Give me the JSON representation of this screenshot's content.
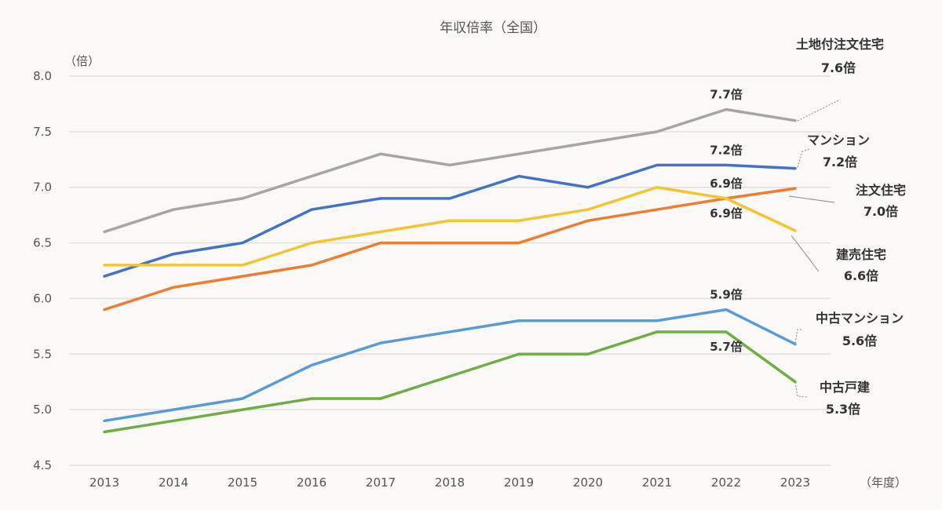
{
  "chart_data": {
    "type": "line",
    "title": "年収倍率（全国）",
    "ylabel": "（倍）",
    "xlabel": "（年度）",
    "ylim": [
      4.5,
      8.0
    ],
    "yticks": [
      "8.0",
      "7.5",
      "7.0",
      "6.5",
      "6.0",
      "5.5",
      "5.0",
      "4.5"
    ],
    "ytick_values": [
      8.0,
      7.5,
      7.0,
      6.5,
      6.0,
      5.5,
      5.0,
      4.5
    ],
    "categories": [
      "2013",
      "2014",
      "2015",
      "2016",
      "2017",
      "2018",
      "2019",
      "2020",
      "2021",
      "2022",
      "2023"
    ],
    "grid": true,
    "legend": "none (end-of-line labels on right)",
    "series": [
      {
        "name": "土地付注文住宅",
        "color": "#a5a5a5",
        "values": [
          6.6,
          6.8,
          6.9,
          7.1,
          7.3,
          7.2,
          7.3,
          7.4,
          7.5,
          7.7,
          7.6
        ],
        "end_label": "7.6倍",
        "annotations": [
          {
            "category": "2022",
            "text": "7.7倍",
            "position": "above"
          }
        ],
        "leader": "dotted"
      },
      {
        "name": "マンション",
        "color": "#4472c4",
        "values": [
          6.2,
          6.4,
          6.5,
          6.8,
          6.9,
          6.9,
          7.1,
          7.0,
          7.2,
          7.2,
          7.17
        ],
        "end_label": "7.2倍",
        "annotations": [
          {
            "category": "2022",
            "text": "7.2倍",
            "position": "above"
          }
        ],
        "leader": "dotted"
      },
      {
        "name": "注文住宅",
        "color": "#ed7d31",
        "values": [
          5.9,
          6.1,
          6.2,
          6.3,
          6.5,
          6.5,
          6.5,
          6.7,
          6.8,
          6.9,
          6.99
        ],
        "end_label": "7.0倍",
        "annotations": [
          {
            "category": "2022",
            "text": "6.9倍",
            "position": "above"
          }
        ],
        "leader": "solid"
      },
      {
        "name": "建売住宅",
        "color": "#f5c432",
        "values": [
          6.3,
          6.3,
          6.3,
          6.5,
          6.6,
          6.7,
          6.7,
          6.8,
          7.0,
          6.9,
          6.61
        ],
        "end_label": "6.6倍",
        "annotations": [
          {
            "category": "2022",
            "text": "6.9倍",
            "position": "below"
          }
        ],
        "leader": "solid"
      },
      {
        "name": "中古マンション",
        "color": "#5b9bd5",
        "values": [
          4.9,
          5.0,
          5.1,
          5.4,
          5.6,
          5.7,
          5.8,
          5.8,
          5.8,
          5.9,
          5.59
        ],
        "end_label": "5.6倍",
        "annotations": [
          {
            "category": "2022",
            "text": "5.9倍",
            "position": "above"
          }
        ],
        "leader": "dotted"
      },
      {
        "name": "中古戸建",
        "color": "#70ad47",
        "values": [
          4.8,
          4.9,
          5.0,
          5.1,
          5.1,
          5.3,
          5.5,
          5.5,
          5.7,
          5.7,
          5.25
        ],
        "end_label": "5.3倍",
        "annotations": [
          {
            "category": "2022",
            "text": "5.7倍",
            "position": "below"
          }
        ],
        "leader": "dotted"
      }
    ]
  }
}
